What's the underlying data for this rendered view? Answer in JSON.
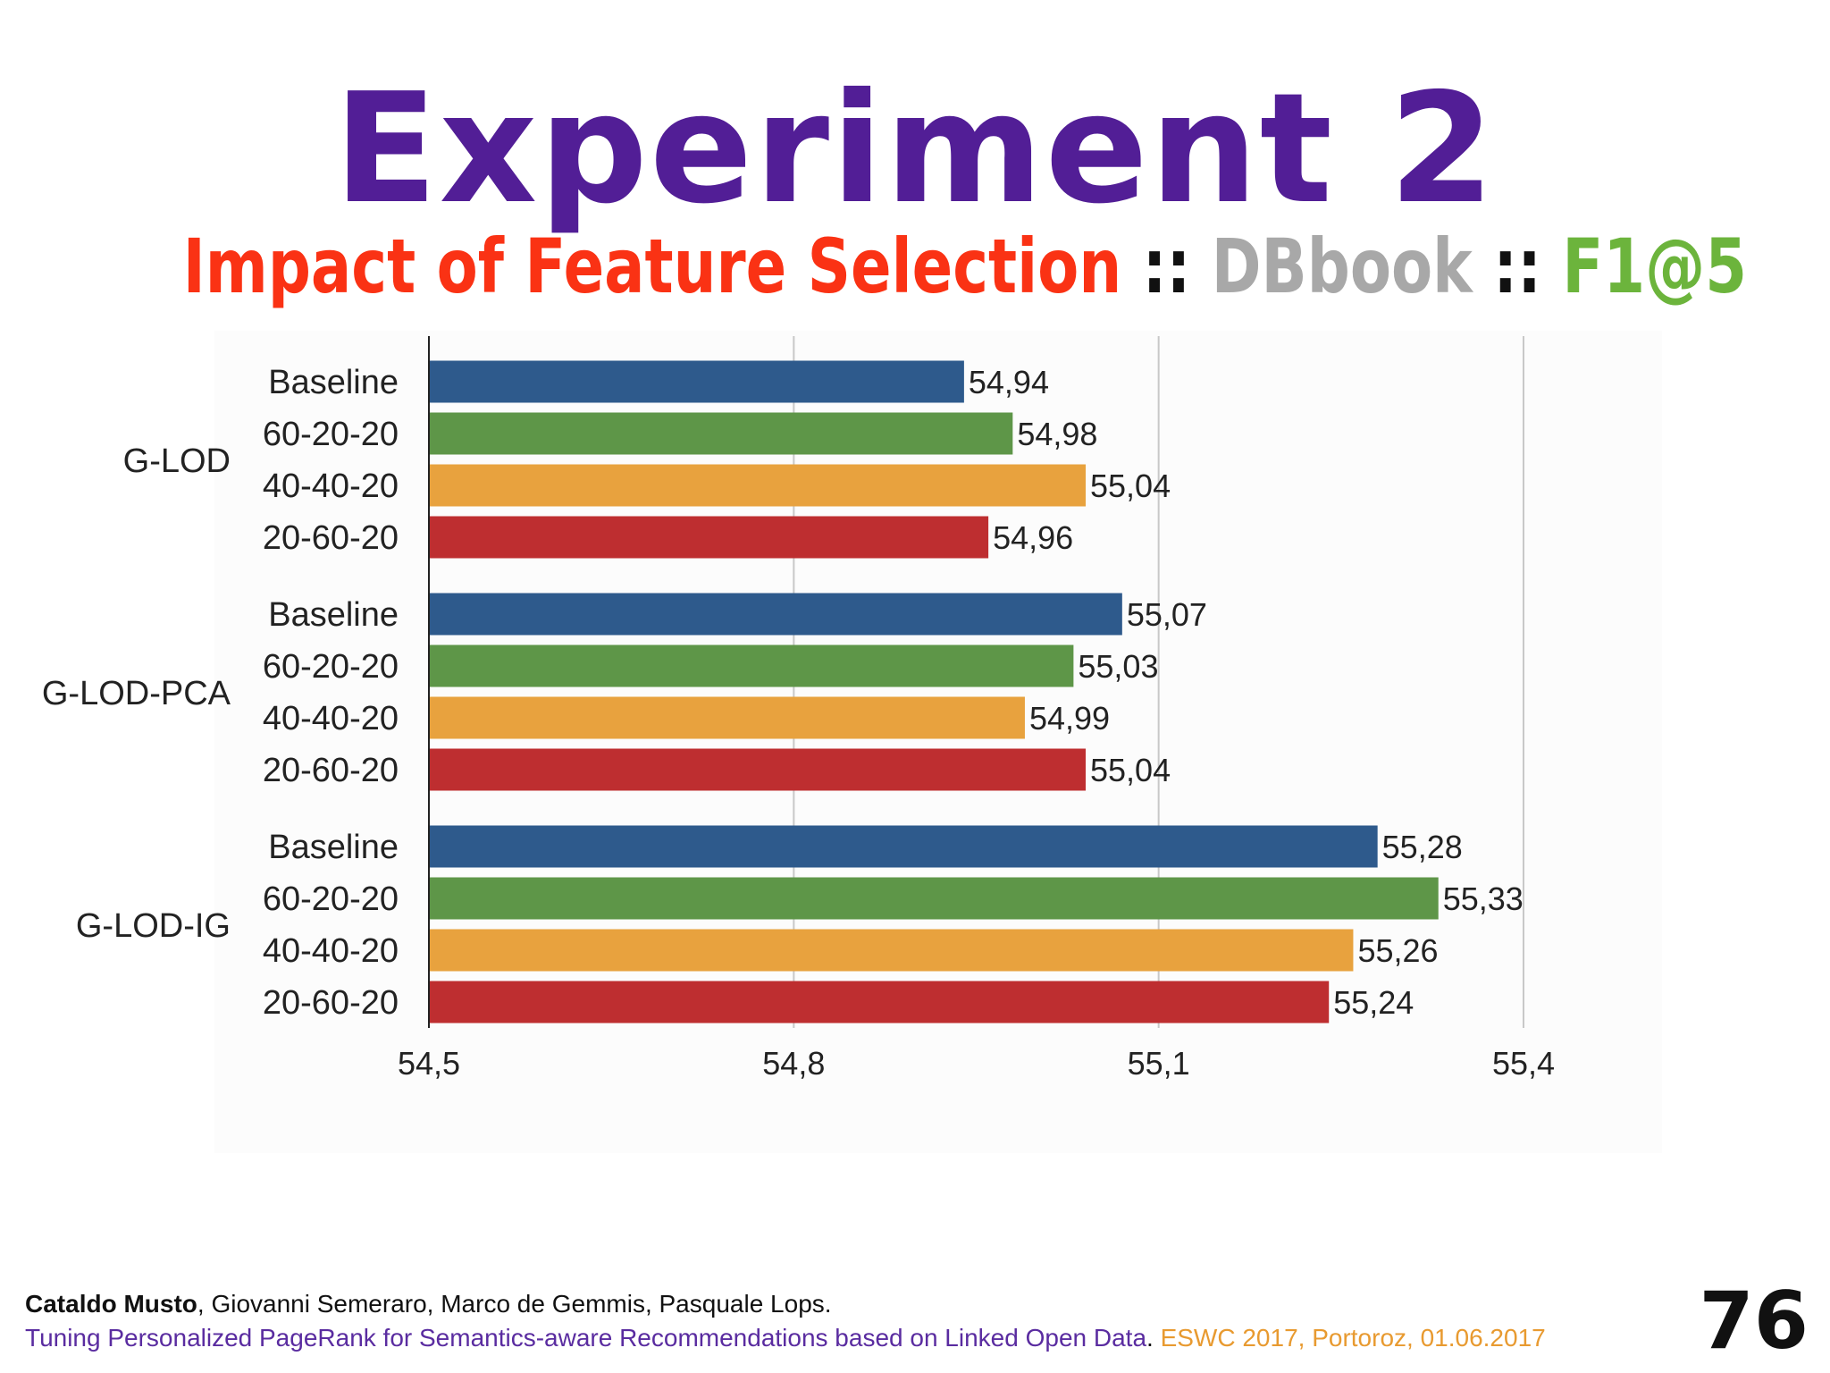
{
  "slide": {
    "title": "Experiment 2",
    "subtitle": {
      "part1": "Impact of Feature Selection",
      "sep1": " :: ",
      "part2": "DBbook",
      "sep2": " :: ",
      "part3": "F1@5"
    },
    "number": "76"
  },
  "colors": {
    "title": "#521e96",
    "subtitle_part1": "#fa3214",
    "subtitle_sep": "#111111",
    "subtitle_part2": "#a8a8a8",
    "subtitle_part3": "#6cb43c",
    "footer_paper": "#5a2ca0",
    "footer_venue": "#e89a30"
  },
  "footer": {
    "first_author": "Cataldo Musto",
    "other_authors": ", Giovanni Semeraro, Marco de Gemmis, Pasquale Lops.",
    "paper_title": "Tuning Personalized PageRank for Semantics-aware Recommendations based on Linked Open Data",
    "paper_sep": ". ",
    "venue": "ESWC 2017, Portoroz, 01.06.2017"
  },
  "chart_data": {
    "type": "bar",
    "orientation": "horizontal",
    "groups": [
      {
        "name": "G-LOD",
        "bars": [
          {
            "label": "Baseline",
            "value": 54.94,
            "display": "54,94",
            "color": "#2e5a8c"
          },
          {
            "label": "60-20-20",
            "value": 54.98,
            "display": "54,98",
            "color": "#5e9648"
          },
          {
            "label": "40-40-20",
            "value": 55.04,
            "display": "55,04",
            "color": "#e8a23e"
          },
          {
            "label": "20-60-20",
            "value": 54.96,
            "display": "54,96",
            "color": "#be2e30"
          }
        ]
      },
      {
        "name": "G-LOD-PCA",
        "bars": [
          {
            "label": "Baseline",
            "value": 55.07,
            "display": "55,07",
            "color": "#2e5a8c"
          },
          {
            "label": "60-20-20",
            "value": 55.03,
            "display": "55,03",
            "color": "#5e9648"
          },
          {
            "label": "40-40-20",
            "value": 54.99,
            "display": "54,99",
            "color": "#e8a23e"
          },
          {
            "label": "20-60-20",
            "value": 55.04,
            "display": "55,04",
            "color": "#be2e30"
          }
        ]
      },
      {
        "name": "G-LOD-IG",
        "bars": [
          {
            "label": "Baseline",
            "value": 55.28,
            "display": "55,28",
            "color": "#2e5a8c"
          },
          {
            "label": "60-20-20",
            "value": 55.33,
            "display": "55,33",
            "color": "#5e9648"
          },
          {
            "label": "40-40-20",
            "value": 55.26,
            "display": "55,26",
            "color": "#e8a23e"
          },
          {
            "label": "20-60-20",
            "value": 55.24,
            "display": "55,24",
            "color": "#be2e30"
          }
        ]
      }
    ],
    "xlim": [
      54.5,
      55.4
    ],
    "xticks": [
      {
        "value": 54.5,
        "label": "54,5"
      },
      {
        "value": 54.8,
        "label": "54,8"
      },
      {
        "value": 55.1,
        "label": "55,1"
      },
      {
        "value": 55.4,
        "label": "55,4"
      }
    ],
    "grid": "vertical",
    "legend": "none"
  }
}
